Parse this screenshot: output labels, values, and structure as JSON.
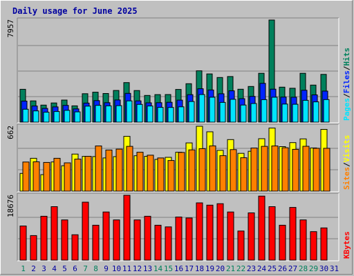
{
  "chart_data": {
    "type": "bar",
    "title": "Daily usage for June 2025",
    "colors": {
      "hits": "#00805c",
      "files": "#0024ff",
      "pages": "#00e4ff",
      "visits": "#ffff00",
      "sites": "#ff8000",
      "kbytes": "#ff0000",
      "weekend_label": "#00805c",
      "weekday_label": "#00009f",
      "plot_bg": "#c0c0c0",
      "gridline": "#808080"
    },
    "days": [
      "1",
      "2",
      "3",
      "4",
      "5",
      "6",
      "7",
      "8",
      "9",
      "10",
      "11",
      "12",
      "13",
      "14",
      "15",
      "16",
      "17",
      "18",
      "19",
      "20",
      "21",
      "22",
      "23",
      "24",
      "25",
      "26",
      "27",
      "28",
      "29",
      "30",
      "31"
    ],
    "weekend_days": [
      "1",
      "7",
      "8",
      "14",
      "15",
      "21",
      "22",
      "28",
      "29"
    ],
    "panels": [
      {
        "name": "hits_files_pages",
        "ymax_label": "7957",
        "ymax": 7957,
        "legend": [
          "Pages",
          "/",
          "Files",
          "/",
          "Hits"
        ],
        "series": [
          {
            "name": "Hits",
            "key": "hits",
            "values": [
              2560,
              1655,
              1326,
              1492,
              1723,
              1267,
              2215,
              2336,
              2232,
              2469,
              3080,
              2460,
              2083,
              2147,
              2151,
              2546,
              2996,
              3998,
              3756,
              3479,
              3553,
              2566,
              2782,
              3807,
              7957,
              2724,
              2640,
              3806,
              2889,
              3721,
              0
            ]
          },
          {
            "name": "Files",
            "key": "files",
            "values": [
              1638,
              1258,
              1068,
              1188,
              1306,
              1031,
              1482,
              1676,
              1516,
              1724,
              2241,
              1655,
              1508,
              1517,
              1550,
              1715,
              2141,
              2601,
              2505,
              2212,
              2440,
              1826,
              2008,
              3020,
              2569,
              1953,
              1941,
              2484,
              2125,
              2422,
              0
            ]
          },
          {
            "name": "Pages",
            "key": "pages",
            "values": [
              1006,
              874,
              772,
              829,
              920,
              802,
              1250,
              1308,
              1269,
              1283,
              1656,
              1381,
              1260,
              1153,
              1146,
              1192,
              1606,
              2151,
              1943,
              1536,
              1779,
              1335,
              1453,
              1751,
              1942,
              1407,
              1391,
              1699,
              1580,
              1757,
              0
            ]
          }
        ]
      },
      {
        "name": "visits_sites",
        "ymax_label": "662",
        "ymax": 662,
        "legend": [
          "Sites",
          "/",
          "Visits"
        ],
        "series": [
          {
            "name": "Visits",
            "key": "visits",
            "values": [
              181,
              335,
              168,
              298,
              259,
              378,
              355,
              353,
              339,
              352,
              559,
              361,
              356,
              324,
              345,
              397,
              492,
              662,
              606,
              416,
              526,
              386,
              407,
              535,
              644,
              454,
              495,
              533,
              441,
              630,
              0
            ]
          },
          {
            "name": "Sites",
            "key": "sites",
            "values": [
              297,
              299,
              293,
              335,
              289,
              327,
              356,
              461,
              420,
              429,
              457,
              397,
              367,
              339,
              313,
              395,
              421,
              434,
              462,
              362,
              424,
              341,
              440,
              457,
              461,
              443,
              427,
              458,
              437,
              437,
              0
            ]
          }
        ]
      },
      {
        "name": "kbytes",
        "ymax_label": "18676",
        "ymax": 18676,
        "legend": [
          "KBytes"
        ],
        "series": [
          {
            "name": "KBytes",
            "key": "kbytes",
            "values": [
              9843,
              7064,
              12635,
              15401,
              11586,
              7318,
              16683,
              10051,
              13874,
              11586,
              18676,
              11587,
              12640,
              10050,
              9571,
              12416,
              12135,
              16500,
              15828,
              16253,
              13874,
              8385,
              13609,
              18431,
              15401,
              10050,
              15182,
              11586,
              8207,
              9274,
              0
            ]
          }
        ]
      }
    ]
  }
}
